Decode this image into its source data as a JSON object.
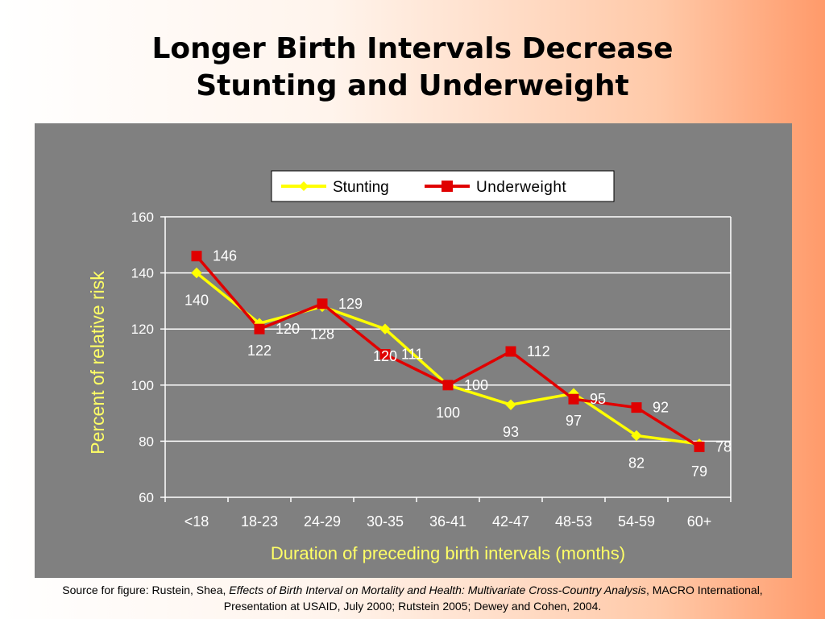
{
  "slide": {
    "title_line1": "Longer Birth Intervals Decrease",
    "title_line2": "Stunting and Underweight"
  },
  "source": {
    "prefix": "Source for figure: Rustein, Shea, ",
    "italic_title": "Effects of Birth Interval on Mortality and Health: Multivariate Cross-Country Analysis",
    "suffix": ", MACRO International, Presentation at USAID, July 2000; Rutstein 2005; Dewey and Cohen, 2004."
  },
  "colors": {
    "panel_background": "#808080",
    "stunting": "#ffff00",
    "underweight": "#e00000",
    "axis_label": "#ffff66"
  },
  "chart_data": {
    "type": "line",
    "xlabel": "Duration of preceding birth intervals (months)",
    "ylabel": "Percent of relative risk",
    "ylim": [
      60,
      160
    ],
    "yticks": [
      60,
      80,
      100,
      120,
      140,
      160
    ],
    "grid": true,
    "legend_position": "top",
    "categories": [
      "<18",
      "18-23",
      "24-29",
      "30-35",
      "36-41",
      "42-47",
      "48-53",
      "54-59",
      "60+"
    ],
    "series": [
      {
        "name": "Stunting",
        "marker": "diamond",
        "color": "#ffff00",
        "values": [
          140,
          122,
          128,
          120,
          100,
          93,
          97,
          82,
          79
        ]
      },
      {
        "name": "Underweight",
        "marker": "square",
        "color": "#e00000",
        "values": [
          146,
          120,
          129,
          111,
          100,
          112,
          95,
          92,
          78
        ]
      }
    ]
  }
}
